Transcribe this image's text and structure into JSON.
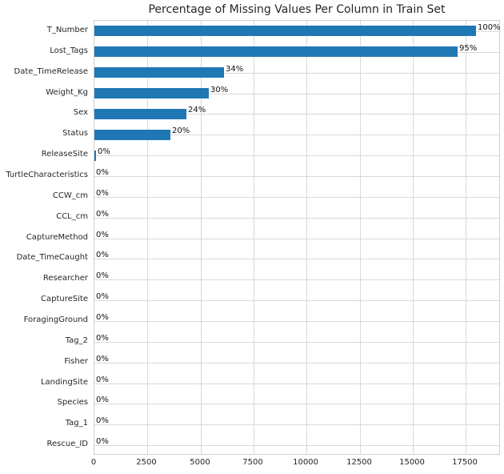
{
  "chart_data": {
    "type": "bar",
    "orientation": "horizontal",
    "title": "Percentage of Missing Values Per Column in Train Set",
    "categories": [
      "T_Number",
      "Lost_Tags",
      "Date_TimeRelease",
      "Weight_Kg",
      "Sex",
      "Status",
      "ReleaseSite",
      "TurtleCharacteristics",
      "CCW_cm",
      "CCL_cm",
      "CaptureMethod",
      "Date_TimeCaught",
      "Researcher",
      "CaptureSite",
      "ForagingGround",
      "Tag_2",
      "Fisher",
      "LandingSite",
      "Species",
      "Tag_1",
      "Rescue_ID"
    ],
    "values": [
      18000,
      17100,
      6120,
      5400,
      4320,
      3600,
      75,
      0,
      0,
      0,
      0,
      0,
      0,
      0,
      0,
      0,
      0,
      0,
      0,
      0,
      0
    ],
    "bar_labels": [
      "100%",
      "95%",
      "34%",
      "30%",
      "24%",
      "20%",
      "0%",
      "0%",
      "0%",
      "0%",
      "0%",
      "0%",
      "0%",
      "0%",
      "0%",
      "0%",
      "0%",
      "0%",
      "0%",
      "0%",
      "0%"
    ],
    "percent_values": [
      100,
      95,
      34,
      30,
      24,
      20,
      0,
      0,
      0,
      0,
      0,
      0,
      0,
      0,
      0,
      0,
      0,
      0,
      0,
      0,
      0
    ],
    "xlabel": "",
    "ylabel": "",
    "x_ticks": [
      0,
      2500,
      5000,
      7500,
      10000,
      12500,
      15000,
      17500
    ],
    "xlim": [
      0,
      19150
    ],
    "grid": true,
    "legend": false,
    "bar_color": "#1f77b4",
    "grid_color": "#d9d9d9",
    "text_color": "#262626"
  }
}
